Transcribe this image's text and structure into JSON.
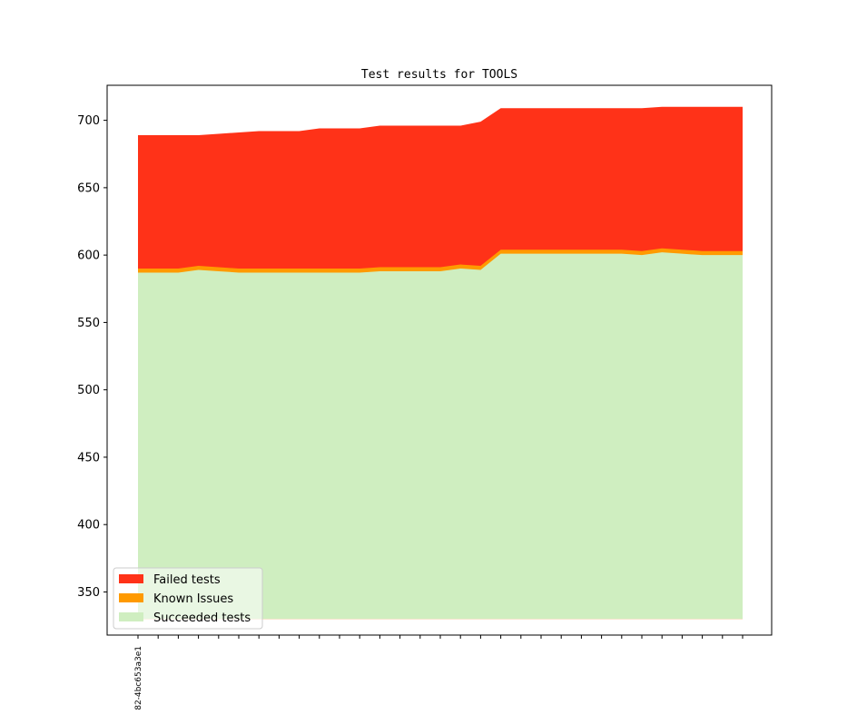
{
  "chart_data": {
    "type": "area",
    "stacked": true,
    "title": "Test results for TOOLS",
    "xlabel": "",
    "ylabel": "",
    "ylim": [
      318,
      726
    ],
    "yticks": [
      350,
      400,
      450,
      500,
      550,
      600,
      650,
      700
    ],
    "x_tick_count": 31,
    "x_tick_labels": [
      {
        "index": 0,
        "label": "82-4bc653a3e1"
      }
    ],
    "baseline": 330,
    "grid": false,
    "legend_position": "lower-left",
    "series": [
      {
        "name": "Succeeded tests",
        "color": "#cfeec0",
        "values": [
          587,
          587,
          587,
          589,
          588,
          587,
          587,
          587,
          587,
          587,
          587,
          587,
          588,
          588,
          588,
          588,
          590,
          589,
          601,
          601,
          601,
          601,
          601,
          601,
          601,
          600,
          602,
          601,
          600,
          600,
          600
        ]
      },
      {
        "name": "Known Issues",
        "color": "#ff9a00",
        "values": [
          590,
          590,
          590,
          592,
          591,
          590,
          590,
          590,
          590,
          590,
          590,
          590,
          591,
          591,
          591,
          591,
          593,
          592,
          604,
          604,
          604,
          604,
          604,
          604,
          604,
          603,
          605,
          604,
          603,
          603,
          603
        ]
      },
      {
        "name": "Failed tests",
        "color": "#ff3218",
        "values": [
          689,
          689,
          689,
          689,
          690,
          691,
          692,
          692,
          692,
          694,
          694,
          694,
          696,
          696,
          696,
          696,
          696,
          699,
          709,
          709,
          709,
          709,
          709,
          709,
          709,
          709,
          710,
          710,
          710,
          710,
          710
        ]
      }
    ]
  }
}
